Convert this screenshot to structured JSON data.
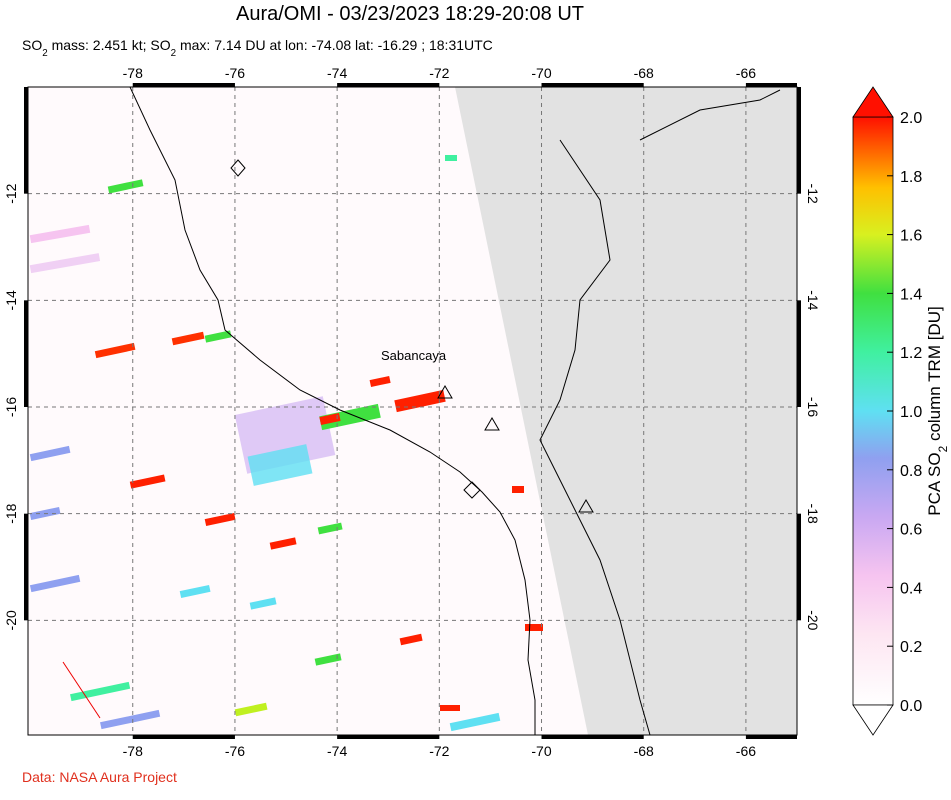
{
  "title": "Aura/OMI - 03/23/2023 18:29-20:08 UT",
  "subtitle_parts": [
    "SO",
    "2",
    " mass: 2.451 kt; SO",
    "2",
    " max: 7.14 DU at lon: -74.08 lat: -16.29 ; 18:31UTC"
  ],
  "map": {
    "xlim": [
      -80.05,
      -65
    ],
    "ylim": [
      -22.15,
      -10
    ],
    "lon_ticks": [
      -78,
      -76,
      -74,
      -72,
      -70,
      -68,
      -66
    ],
    "lat_ticks": [
      -12,
      -14,
      -16,
      -18,
      -20
    ],
    "volcano_label": "Sabancaya"
  },
  "colorbar": {
    "label_parts": [
      "PCA SO",
      "2",
      " column TRM [DU]"
    ],
    "lim": [
      0,
      2
    ],
    "ticks": [
      {
        "value": 0,
        "label": "0.0"
      },
      {
        "value": 0.2,
        "label": "0.2"
      },
      {
        "value": 0.4,
        "label": "0.4"
      },
      {
        "value": 0.6,
        "label": "0.6"
      },
      {
        "value": 0.8,
        "label": "0.8"
      },
      {
        "value": 1,
        "label": "1.0"
      },
      {
        "value": 1.2,
        "label": "1.2"
      },
      {
        "value": 1.4,
        "label": "1.4"
      },
      {
        "value": 1.6,
        "label": "1.6"
      },
      {
        "value": 1.8,
        "label": "1.8"
      },
      {
        "value": 2,
        "label": "2.0"
      }
    ]
  },
  "footer": "Data: NASA Aura Project"
}
